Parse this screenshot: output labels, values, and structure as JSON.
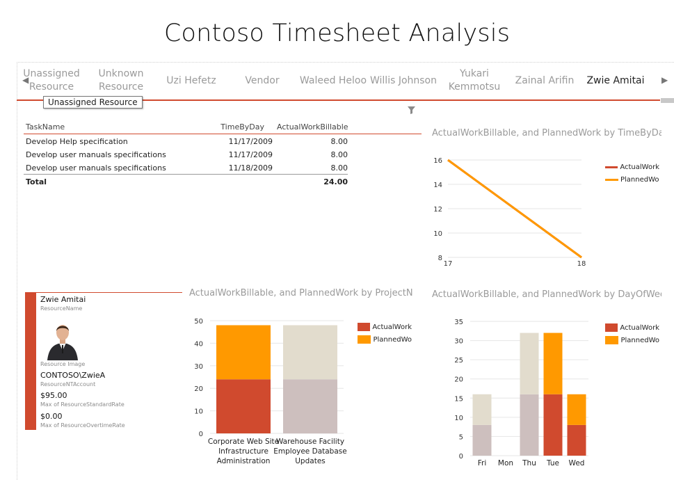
{
  "page_title": "Contoso Timesheet Analysis",
  "slicer": {
    "items": [
      "Unassigned Resource",
      "Unknown Resource",
      "Uzi Hefetz",
      "Vendor",
      "Waleed Heloo",
      "Willis Johnson",
      "Yukari Kemmotsu",
      "Zainal Arifin",
      "Zwie Amitai"
    ],
    "selected": "Zwie Amitai",
    "left_arrow": "◀",
    "right_arrow": "▶",
    "tooltip": "Unassigned Resource"
  },
  "table": {
    "headers": [
      "TaskName",
      "TimeByDay",
      "ActualWorkBillable"
    ],
    "rows": [
      [
        "Develop Help specification",
        "11/17/2009",
        "8.00"
      ],
      [
        "Develop user manuals specifications",
        "11/17/2009",
        "8.00"
      ],
      [
        "Develop user manuals specifications",
        "11/18/2009",
        "8.00"
      ]
    ],
    "total_label": "Total",
    "total_value": "24.00"
  },
  "card": {
    "name": "Zwie Amitai",
    "name_label": "ResourceName",
    "image_label": "Resource Image",
    "account": "CONTOSO\\ZwieA",
    "account_label": "ResourceNTAccount",
    "std_rate": "$95.00",
    "std_rate_label": "Max of ResourceStandardRate",
    "ot_rate": "$0.00",
    "ot_rate_label": "Max of ResourceOvertimeRate"
  },
  "colors": {
    "actual": "#d04a2e",
    "planned": "#ff9900",
    "actual_faded": "#cdbfbe",
    "planned_faded": "#e2dccd",
    "accent_line": "#d04a2e"
  },
  "chart_data": [
    {
      "type": "line",
      "title": "ActualWorkBillable, and PlannedWork by TimeByDay_D",
      "x": [
        "17",
        "18"
      ],
      "series": [
        {
          "name": "ActualWork",
          "values": [
            16,
            8
          ]
        },
        {
          "name": "PlannedWo",
          "values": [
            16,
            8
          ]
        }
      ],
      "ylim": [
        8,
        16
      ],
      "yticks": [
        8,
        10,
        12,
        14,
        16
      ],
      "grid": true,
      "legend": "right"
    },
    {
      "type": "bar",
      "stacked": true,
      "title": "ActualWorkBillable, and PlannedWork by ProjectNam",
      "categories": [
        "Corporate Web Site Infrastructure Administration",
        "Warehouse Facility Employee Database Updates"
      ],
      "category_lines": [
        [
          "Corporate Web Site",
          "Infrastructure",
          "Administration"
        ],
        [
          "Warehouse Facility",
          "Employee Database",
          "Updates"
        ]
      ],
      "highlighted": [
        true,
        false
      ],
      "series": [
        {
          "name": "ActualWork",
          "values": [
            24,
            24
          ]
        },
        {
          "name": "PlannedWo",
          "values": [
            24,
            24
          ]
        }
      ],
      "ylim": [
        0,
        50
      ],
      "yticks": [
        0,
        10,
        20,
        30,
        40,
        50
      ],
      "grid": true,
      "legend": "right"
    },
    {
      "type": "bar",
      "stacked": true,
      "title": "ActualWorkBillable, and PlannedWork by DayOfWeek T",
      "categories": [
        "Fri",
        "Mon",
        "Thu",
        "Tue",
        "Wed"
      ],
      "highlighted": [
        false,
        false,
        false,
        true,
        true
      ],
      "series": [
        {
          "name": "ActualWork",
          "values": [
            8,
            0,
            16,
            16,
            8
          ]
        },
        {
          "name": "PlannedWo",
          "values": [
            8,
            0,
            16,
            16,
            8
          ]
        }
      ],
      "ylim": [
        0,
        35
      ],
      "yticks": [
        0,
        5,
        10,
        15,
        20,
        25,
        30,
        35
      ],
      "grid": true,
      "legend": "right"
    }
  ]
}
